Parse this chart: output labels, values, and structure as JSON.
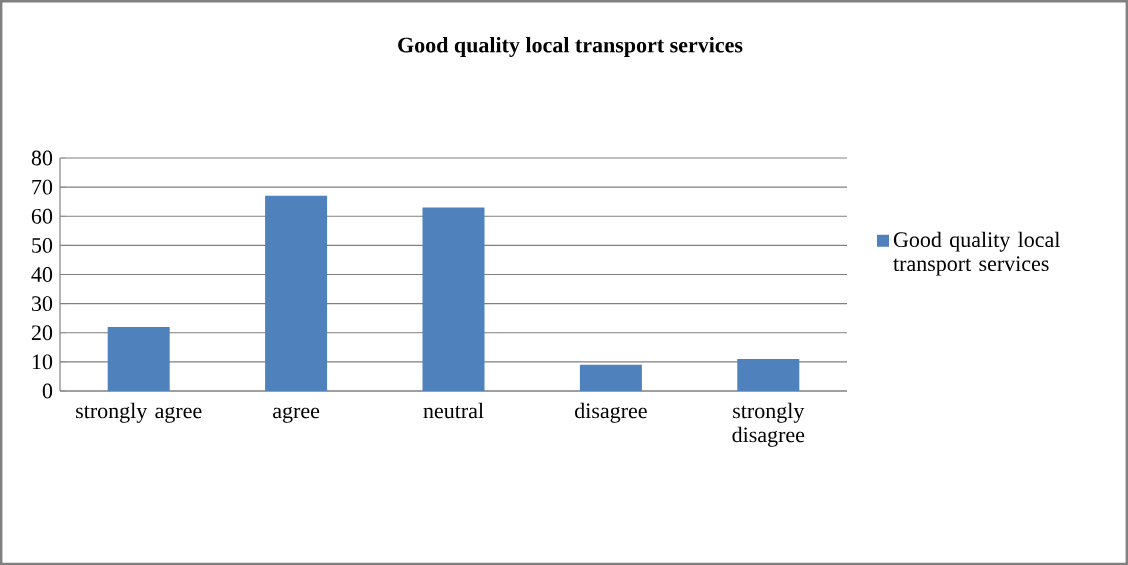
{
  "chart_data": {
    "type": "bar",
    "title": "Good quality local transport services",
    "categories": [
      "strongly agree",
      "agree",
      "neutral",
      "disagree",
      "strongly disagree"
    ],
    "series": [
      {
        "name": "Good quality local transport services",
        "color": "#4f81bd",
        "values": [
          22,
          67,
          63,
          9,
          11
        ]
      }
    ],
    "ylim": [
      0,
      80
    ],
    "yticks": [
      0,
      10,
      20,
      30,
      40,
      50,
      60,
      70,
      80
    ],
    "grid": "y",
    "legend": "right"
  }
}
